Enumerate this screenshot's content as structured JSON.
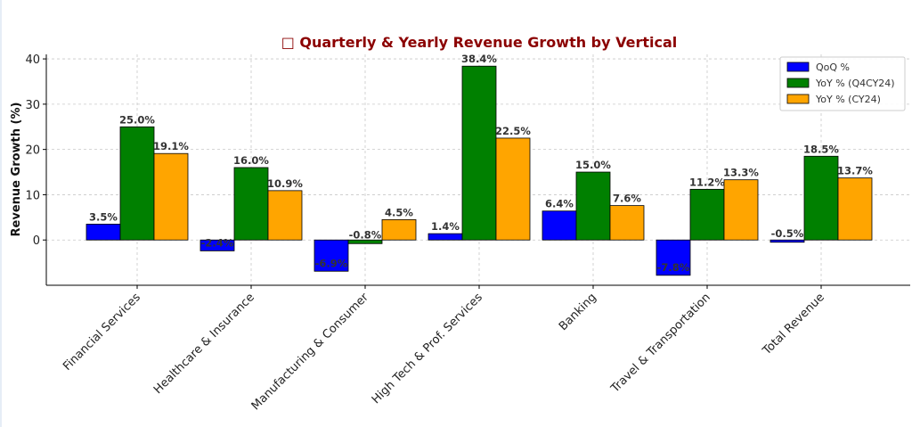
{
  "chart_data": {
    "type": "bar",
    "title": "Quarterly & Yearly Revenue Growth by Vertical",
    "title_icon": "□",
    "title_color": "#8b0000",
    "xlabel": "",
    "ylabel": "Revenue Growth (%)",
    "ylim": [
      -10,
      41
    ],
    "yticks": [
      0,
      10,
      20,
      30,
      40
    ],
    "grid": true,
    "legend_position": "top-right",
    "categories": [
      "Financial Services",
      "Healthcare & Insurance",
      "Manufacturing & Consumer",
      "High Tech & Prof. Services",
      "Banking",
      "Travel & Transportation",
      "Total Revenue"
    ],
    "series": [
      {
        "name": "QoQ %",
        "color": "#0000ff",
        "values": [
          3.5,
          -2.4,
          -6.9,
          1.4,
          6.4,
          -7.8,
          -0.5
        ],
        "labels": [
          "3.5%",
          "-2.4%",
          "-6.9%",
          "1.4%",
          "6.4%",
          "-7.8%",
          "-0.5%"
        ]
      },
      {
        "name": "YoY % (Q4CY24)",
        "color": "#008000",
        "values": [
          25.0,
          16.0,
          -0.8,
          38.4,
          15.0,
          11.2,
          18.5
        ],
        "labels": [
          "25.0%",
          "16.0%",
          "-0.8%",
          "38.4%",
          "15.0%",
          "11.2%",
          "18.5%"
        ]
      },
      {
        "name": "YoY % (CY24)",
        "color": "#ffa500",
        "values": [
          19.1,
          10.9,
          4.5,
          22.5,
          7.6,
          13.3,
          13.7
        ],
        "labels": [
          "19.1%",
          "10.9%",
          "4.5%",
          "22.5%",
          "7.6%",
          "13.3%",
          "13.7%"
        ]
      }
    ]
  }
}
